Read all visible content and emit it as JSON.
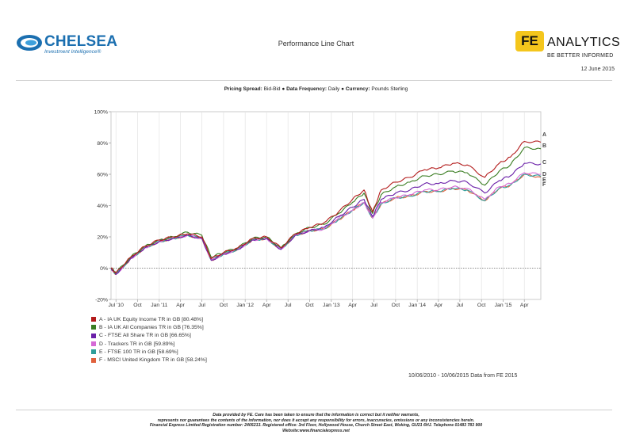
{
  "header": {
    "left_brand": "CHELSEA",
    "left_tagline": "Investment Intelligence®",
    "title": "Performance Line Chart",
    "right_brand_mark": "FE",
    "right_brand": "ANALYTICS",
    "right_tagline": "BE BETTER INFORMED",
    "date": "12 June 2015"
  },
  "info": {
    "pricing_label": "Pricing Spread:",
    "pricing_value": "Bid-Bid",
    "frequency_label": "Data Frequency:",
    "frequency_value": "Daily",
    "currency_label": "Currency:",
    "currency_value": "Pounds Sterling",
    "separator": "●"
  },
  "chart_data": {
    "type": "line",
    "title": "",
    "xlabel": "",
    "ylabel": "",
    "ylim": [
      -20,
      100
    ],
    "yticks": [
      "100%",
      "80%",
      "60%",
      "40%",
      "20%",
      "0%",
      "-20%"
    ],
    "ytick_values": [
      100,
      80,
      60,
      40,
      20,
      0,
      -20
    ],
    "xticks": [
      "Jul '10",
      "Oct",
      "Jan '11",
      "Apr",
      "Jul",
      "Oct",
      "Jan '12",
      "Apr",
      "Jul",
      "Oct",
      "Jan '13",
      "Apr",
      "Jul",
      "Oct",
      "Jan '14",
      "Apr",
      "Jul",
      "Oct",
      "Jan '15",
      "Apr"
    ],
    "xtick_dates": [
      "2010-07-01",
      "2010-10-01",
      "2011-01-01",
      "2011-04-01",
      "2011-07-01",
      "2011-10-01",
      "2012-01-01",
      "2012-04-01",
      "2012-07-01",
      "2012-10-01",
      "2013-01-01",
      "2013-04-01",
      "2013-07-01",
      "2013-10-01",
      "2014-01-01",
      "2014-04-01",
      "2014-07-01",
      "2014-10-01",
      "2015-01-01",
      "2015-04-01"
    ],
    "x_range": [
      "2010-06-10",
      "2015-06-10"
    ],
    "grid": "vertical",
    "zero_line": "dotted",
    "legend_position": "below-left",
    "x": [
      "2010-06-10",
      "2010-07-01",
      "2010-09-01",
      "2010-11-01",
      "2011-01-01",
      "2011-03-01",
      "2011-05-01",
      "2011-07-01",
      "2011-08-10",
      "2011-10-01",
      "2011-12-01",
      "2012-02-01",
      "2012-04-01",
      "2012-06-01",
      "2012-08-01",
      "2012-10-01",
      "2012-12-01",
      "2013-02-01",
      "2013-04-01",
      "2013-05-20",
      "2013-06-25",
      "2013-08-01",
      "2013-10-01",
      "2013-12-01",
      "2014-02-01",
      "2014-04-01",
      "2014-06-01",
      "2014-08-01",
      "2014-10-15",
      "2014-12-15",
      "2015-02-01",
      "2015-04-01",
      "2015-06-10"
    ],
    "series": [
      {
        "name": "A - IA UK Equity Income TR in GB [80.48%]",
        "label": "A",
        "color": "#b31b1b",
        "values": [
          0,
          -3,
          7,
          14,
          18,
          20,
          22,
          20,
          6,
          10,
          13,
          19,
          20,
          13,
          22,
          26,
          29,
          36,
          44,
          50,
          36,
          50,
          55,
          58,
          63,
          64,
          67,
          66,
          58,
          67,
          71,
          81,
          80.5
        ]
      },
      {
        "name": "B - IA UK All Companies TR in GB [76.35%]",
        "label": "B",
        "color": "#3a7d22",
        "values": [
          0,
          -3,
          7,
          14,
          18,
          20,
          23,
          21,
          7,
          10,
          13,
          19,
          20,
          13,
          22,
          26,
          28,
          35,
          42,
          48,
          35,
          47,
          52,
          55,
          59,
          60,
          62,
          61,
          53,
          62,
          66,
          77,
          76.3
        ]
      },
      {
        "name": "C - FTSE All Share TR in GB [66.65%]",
        "label": "C",
        "color": "#6a1fa8",
        "values": [
          0,
          -4,
          6,
          13,
          17,
          19,
          21,
          19,
          5,
          9,
          12,
          18,
          19,
          12,
          21,
          24,
          26,
          33,
          39,
          44,
          33,
          44,
          48,
          50,
          54,
          54,
          56,
          55,
          48,
          56,
          59,
          67,
          66.6
        ]
      },
      {
        "name": "D - Trackers TR in GB [59.89%]",
        "label": "D",
        "color": "#d56ad6",
        "values": [
          0,
          -4,
          6,
          13,
          17,
          19,
          21,
          19,
          5,
          9,
          12,
          18,
          19,
          12,
          21,
          24,
          25,
          32,
          37,
          42,
          32,
          42,
          45,
          47,
          50,
          50,
          52,
          51,
          44,
          52,
          54,
          61,
          59.9
        ]
      },
      {
        "name": "E - FTSE 100 TR in GB [58.69%]",
        "label": "E",
        "color": "#2f9e9a",
        "values": [
          0,
          -4,
          6,
          13,
          17,
          19,
          21,
          19,
          5,
          9,
          12,
          18,
          19,
          12,
          21,
          24,
          25,
          31,
          37,
          42,
          32,
          41,
          45,
          46,
          49,
          49,
          51,
          50,
          43,
          51,
          53,
          60,
          58.7
        ]
      },
      {
        "name": "F - MSCI United Kingdom TR in GB [58.24%]",
        "label": "F",
        "color": "#e0603c",
        "values": [
          0,
          -4,
          6,
          13,
          17,
          19,
          21,
          19,
          5,
          9,
          12,
          18,
          19,
          12,
          21,
          24,
          25,
          31,
          37,
          42,
          32,
          41,
          45,
          46,
          49,
          49,
          51,
          50,
          43,
          51,
          53,
          60,
          58.2
        ]
      }
    ]
  },
  "footer": {
    "date_range": "10/06/2010 - 10/06/2015 Data from FE 2015",
    "disclaimer_lines": [
      "Data provided by FE. Care has been taken to ensure that the information is correct but it neither warrants,",
      "represents nor guarantees the contents of the information, nor does it accept any responsibility for errors, inaccuracies, omissions or any inconsistencies herein.",
      "Financial Express Limited Registration number: 2405213. Registered office: 3rd Floor, Hollywood House, Church Street East, Woking, GU21 6HJ. Telephone 01483 783 900",
      "Website:www.financialexpress.net"
    ]
  }
}
